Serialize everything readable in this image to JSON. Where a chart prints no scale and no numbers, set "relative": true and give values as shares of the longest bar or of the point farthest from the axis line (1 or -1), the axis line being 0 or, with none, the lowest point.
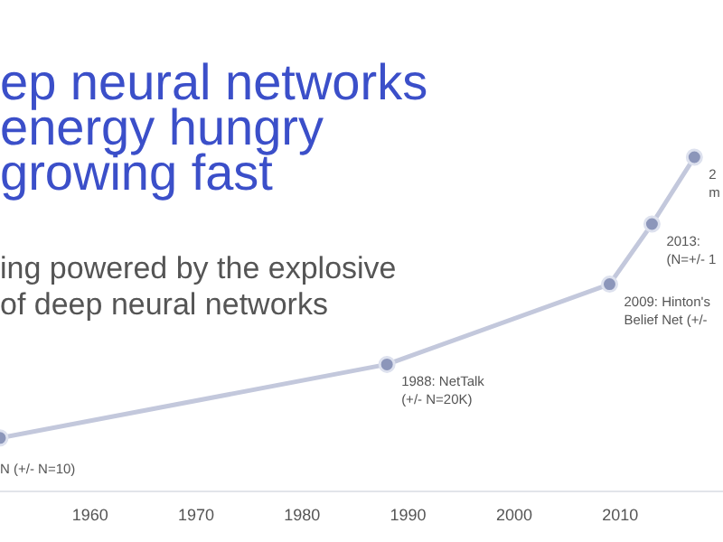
{
  "chart_data": {
    "type": "line",
    "title": "ep neural networks\nenergy hungry\ngrowing fast",
    "subtitle": "ing powered by the explosive\nof deep neural networks",
    "relative": true,
    "x": [
      1951.5,
      1988,
      2009,
      2013,
      2017
    ],
    "xlim": [
      1951.5,
      2019.7
    ],
    "xticks": [
      1960,
      1970,
      1980,
      1990,
      2000,
      2010
    ],
    "series": [
      {
        "color": "#c3c8dc",
        "values": [
          0.16,
          0.38,
          0.62,
          0.8,
          1
        ]
      }
    ],
    "marker": "circle",
    "annotations": [
      {
        "text": "N (+/- N=10)",
        "x": 1951.5,
        "y": 0.16
      },
      {
        "text": "1988: NetTalk\n(+/- N=20K)",
        "x": 1988,
        "y": 0.38
      },
      {
        "text": "2009: Hinton's\nBelief Net (+/-",
        "x": 2009,
        "y": 0.62
      },
      {
        "text": "2013:\n(N=+/- 1",
        "x": 2013,
        "y": 0.8
      },
      {
        "text": "2\nm",
        "x": 2017,
        "y": 1
      }
    ]
  }
}
